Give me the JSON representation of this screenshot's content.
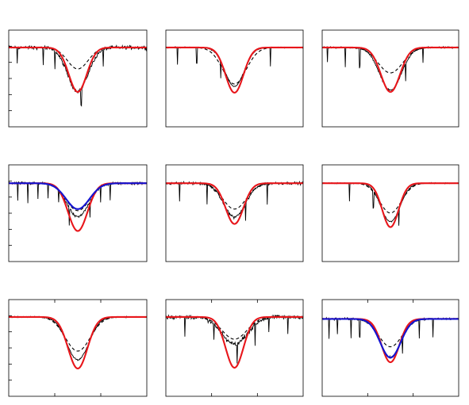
{
  "figure": {
    "rows": 3,
    "cols": 3
  },
  "colors": {
    "observed": "#000000",
    "model_red": "#e8161b",
    "model_blue": "#1414d2",
    "model_dashed": "#000000",
    "frame": "#000000"
  },
  "chart_data": [
    {
      "type": "line",
      "row": 0,
      "col": 0,
      "xlim": [
        -1,
        1
      ],
      "ylim": [
        0,
        1
      ],
      "continuum": 0.82,
      "obs_depth": 0.55,
      "obs_width": 0.15,
      "red_depth": 0.56,
      "red_width": 0.13,
      "dash_depth": 0.27,
      "dash_width": 0.15,
      "noise": 0.016,
      "spikes": [
        -0.88,
        -0.5,
        -0.33,
        0.05,
        0.37
      ],
      "blue": null
    },
    {
      "type": "line",
      "row": 0,
      "col": 1,
      "xlim": [
        -1,
        1
      ],
      "ylim": [
        0,
        1
      ],
      "continuum": 0.82,
      "obs_depth": 0.49,
      "obs_width": 0.14,
      "red_depth": 0.57,
      "red_width": 0.13,
      "dash_depth": 0.46,
      "dash_width": 0.17,
      "noise": 0.005,
      "spikes": [
        -0.83,
        -0.55,
        -0.2,
        0.52
      ],
      "blue": null
    },
    {
      "type": "line",
      "row": 0,
      "col": 2,
      "xlim": [
        -1,
        1
      ],
      "ylim": [
        0,
        1
      ],
      "continuum": 0.82,
      "obs_depth": 0.54,
      "obs_width": 0.16,
      "red_depth": 0.56,
      "red_width": 0.14,
      "dash_depth": 0.32,
      "dash_width": 0.18,
      "noise": 0.008,
      "spikes": [
        -0.92,
        -0.66,
        -0.45,
        0.22,
        0.48
      ],
      "blue": null
    },
    {
      "type": "line",
      "row": 1,
      "col": 0,
      "xlim": [
        -1,
        1
      ],
      "ylim": [
        0,
        1
      ],
      "continuum": 0.81,
      "obs_depth": 0.43,
      "obs_width": 0.16,
      "red_depth": 0.61,
      "red_width": 0.14,
      "dash_depth": 0.35,
      "dash_width": 0.17,
      "noise": 0.012,
      "spikes": [
        -0.87,
        -0.72,
        -0.58,
        -0.43,
        -0.28,
        -0.12,
        0.18,
        0.33,
        0.47
      ],
      "blue": {
        "depth": 0.33,
        "width": 0.17
      }
    },
    {
      "type": "line",
      "row": 1,
      "col": 1,
      "xlim": [
        -1,
        1
      ],
      "ylim": [
        0,
        1
      ],
      "continuum": 0.81,
      "obs_depth": 0.43,
      "obs_width": 0.16,
      "red_depth": 0.52,
      "red_width": 0.13,
      "dash_depth": 0.33,
      "dash_width": 0.17,
      "noise": 0.012,
      "spikes": [
        -0.8,
        -0.4,
        0.16,
        0.48
      ],
      "blue": null
    },
    {
      "type": "line",
      "row": 1,
      "col": 2,
      "xlim": [
        -1,
        1
      ],
      "ylim": [
        0,
        1
      ],
      "continuum": 0.81,
      "obs_depth": 0.49,
      "obs_width": 0.14,
      "red_depth": 0.56,
      "red_width": 0.12,
      "dash_depth": 0.38,
      "dash_width": 0.16,
      "noise": 0.005,
      "spikes": [
        -0.6,
        -0.25,
        0.12
      ],
      "blue": null
    },
    {
      "type": "line",
      "row": 2,
      "col": 0,
      "xlim": [
        -1,
        1
      ],
      "ylim": [
        0,
        1
      ],
      "continuum": 0.82,
      "obs_depth": 0.54,
      "obs_width": 0.16,
      "red_depth": 0.65,
      "red_width": 0.14,
      "dash_depth": 0.43,
      "dash_width": 0.18,
      "noise": 0.006,
      "spikes": [],
      "blue": null
    },
    {
      "type": "line",
      "row": 2,
      "col": 1,
      "xlim": [
        -1,
        1
      ],
      "ylim": [
        0,
        1
      ],
      "continuum": 0.82,
      "obs_depth": 0.34,
      "obs_width": 0.19,
      "red_depth": 0.64,
      "red_width": 0.13,
      "dash_depth": 0.28,
      "dash_width": 0.18,
      "noise": 0.018,
      "spikes": [
        -0.72,
        -0.3,
        0.04,
        0.3,
        0.5,
        0.78
      ],
      "blue": null
    },
    {
      "type": "line",
      "row": 2,
      "col": 2,
      "xlim": [
        -1,
        1
      ],
      "ylim": [
        0,
        1
      ],
      "continuum": 0.8,
      "obs_depth": 0.5,
      "obs_width": 0.15,
      "red_depth": 0.56,
      "red_width": 0.13,
      "dash_depth": 0.36,
      "dash_width": 0.17,
      "noise": 0.01,
      "spikes": [
        -0.9,
        -0.78,
        -0.58,
        -0.45,
        0.18,
        0.42,
        0.62
      ],
      "blue": {
        "depth": 0.5,
        "width": 0.15
      }
    }
  ]
}
